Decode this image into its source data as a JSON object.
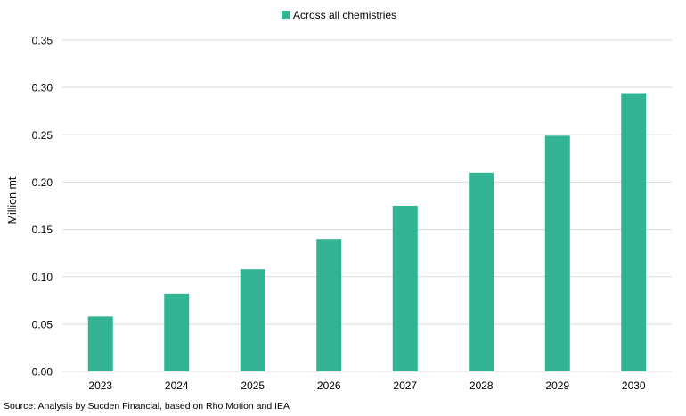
{
  "chart_data": {
    "type": "bar",
    "title": "",
    "xlabel": "",
    "ylabel": "Million mt",
    "ylim": [
      0,
      0.35
    ],
    "yticks": [
      "0.00",
      "0.05",
      "0.10",
      "0.15",
      "0.20",
      "0.25",
      "0.30",
      "0.35"
    ],
    "categories": [
      "2023",
      "2024",
      "2025",
      "2026",
      "2027",
      "2028",
      "2029",
      "2030"
    ],
    "series": [
      {
        "name": "Across all chemistries",
        "values": [
          0.058,
          0.082,
          0.108,
          0.14,
          0.175,
          0.21,
          0.249,
          0.294
        ],
        "color": "#32b394"
      }
    ],
    "grid": true,
    "legend_position": "top-center"
  },
  "source_note": "Source: Analysis by Sucden Financial, based on Rho Motion and IEA"
}
